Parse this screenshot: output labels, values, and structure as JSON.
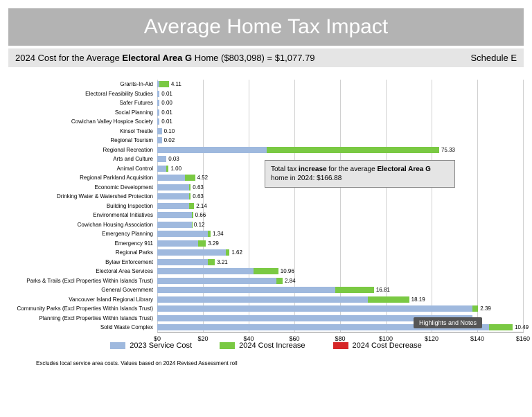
{
  "title": "Average Home Tax Impact",
  "subtitle_prefix": "2024 Cost for the Average ",
  "subtitle_bold": "Electoral Area G",
  "subtitle_suffix": " Home ($803,098) = $1,077.79",
  "schedule": "Schedule E",
  "footnote": "Excludes local service area costs. Values based on 2024 Revised Assessment roll",
  "callout_text_pre": "Total tax ",
  "callout_bold1": "increase",
  "callout_mid": " for the average ",
  "callout_bold2": "Electoral Area G",
  "callout_end": " home in 2024: $166.88",
  "highlights_label": "Highlights and Notes",
  "legend": [
    {
      "label": "2023 Service Cost",
      "color": "#9fb9de"
    },
    {
      "label": "2024 Cost Increase",
      "color": "#7ac943"
    },
    {
      "label": "2024 Cost Decrease",
      "color": "#d62728"
    }
  ],
  "chart": {
    "type": "bar",
    "xlim": [
      0,
      160
    ],
    "xtick_step": 20,
    "xtick_prefix": "$",
    "background_color": "#ffffff",
    "grid_color": "#d0d0d0",
    "base_color": "#9fb9de",
    "inc_color": "#7ac943",
    "dec_color": "#d62728",
    "label_fontsize": 8,
    "rows": [
      {
        "label": "Grants-In-Aid",
        "base": 1,
        "inc": 4.11,
        "val": "4.11"
      },
      {
        "label": "Electoral Feasibility Studies",
        "base": 1,
        "inc": 0,
        "val": "0.01"
      },
      {
        "label": "Safer Futures",
        "base": 1,
        "inc": 0,
        "val": "0.00"
      },
      {
        "label": "Social Planning",
        "base": 1,
        "inc": 0,
        "val": "0.01"
      },
      {
        "label": "Cowichan Valley Hospice Society",
        "base": 1,
        "inc": 0,
        "val": "0.01"
      },
      {
        "label": "Kinsol Trestle",
        "base": 2,
        "inc": 0,
        "val": "0.10"
      },
      {
        "label": "Regional Tourism",
        "base": 2,
        "inc": 0,
        "val": "0.02"
      },
      {
        "label": "Regional Recreation",
        "base": 48,
        "inc": 75.33,
        "val": "75.33"
      },
      {
        "label": "Arts and Culture",
        "base": 4,
        "inc": 0,
        "val": "0.03"
      },
      {
        "label": "Animal Control",
        "base": 4,
        "inc": 1,
        "val": "1.00"
      },
      {
        "label": "Regional Parkland Acquisition",
        "base": 12,
        "inc": 4.52,
        "val": "4.52"
      },
      {
        "label": "Economic Development",
        "base": 14,
        "inc": 0.63,
        "val": "0.63"
      },
      {
        "label": "Drinking Water & Watershed Protection",
        "base": 14,
        "inc": 0.63,
        "val": "0.63"
      },
      {
        "label": "Building Inspection",
        "base": 14,
        "inc": 2.14,
        "val": "2.14"
      },
      {
        "label": "Environmental Initiatives",
        "base": 15,
        "inc": 0.66,
        "val": "0.66"
      },
      {
        "label": "Cowichan Housing Association",
        "base": 15,
        "inc": 0.12,
        "val": "0.12"
      },
      {
        "label": "Emergency Planning",
        "base": 22,
        "inc": 1.34,
        "val": "1.34"
      },
      {
        "label": "Emergency 911",
        "base": 18,
        "inc": 3.29,
        "val": "3.29"
      },
      {
        "label": "Regional Parks",
        "base": 30,
        "inc": 1.62,
        "val": "1.62"
      },
      {
        "label": "Bylaw Enforcement",
        "base": 22,
        "inc": 3.21,
        "val": "3.21"
      },
      {
        "label": "Electoral Area Services",
        "base": 42,
        "inc": 10.96,
        "val": "10.96"
      },
      {
        "label": "Parks & Trails (Excl Properties Within Islands Trust)",
        "base": 52,
        "inc": 2.84,
        "val": "2.84"
      },
      {
        "label": "General Government",
        "base": 78,
        "inc": 16.81,
        "val": "16.81"
      },
      {
        "label": "Vancouver Island Regional Library",
        "base": 92,
        "inc": 18.19,
        "val": "18.19"
      },
      {
        "label": "Community Parks (Excl Properties Within Islands Trust)",
        "base": 138,
        "inc": 2.39,
        "val": "2.39"
      },
      {
        "label": "Planning (Excl Properties Within Islands Trust)",
        "base": 138,
        "inc": 0,
        "val": ""
      },
      {
        "label": "Solid Waste Complex",
        "base": 145,
        "inc": 10.49,
        "val": "10.49"
      }
    ]
  }
}
